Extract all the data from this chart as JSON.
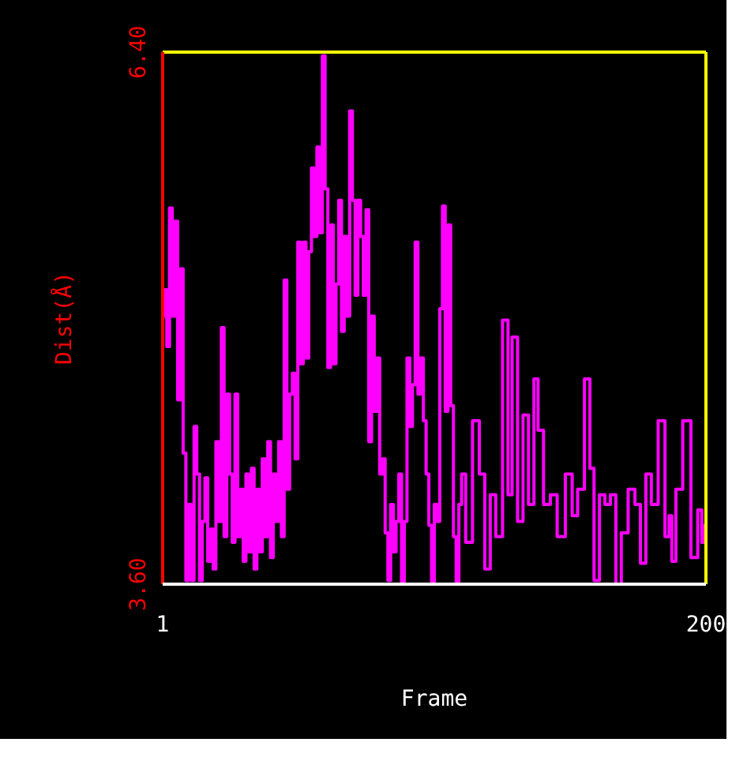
{
  "chart_data": {
    "type": "step",
    "xlabel": "Frame",
    "ylabel": "Dist(Å)",
    "xlim": [
      1,
      200
    ],
    "ylim": [
      3.6,
      6.4
    ],
    "xticks": [
      1,
      200
    ],
    "yticks": [
      {
        "value": 3.6,
        "label": "3.60"
      },
      {
        "value": 6.4,
        "label": "6.40"
      }
    ],
    "series": [
      {
        "color": "#ff00ff",
        "x": [
          1,
          2,
          3,
          4,
          5,
          6,
          7,
          8,
          9,
          10,
          11,
          12,
          13,
          14,
          15,
          16,
          17,
          18,
          19,
          20,
          21,
          22,
          23,
          24,
          25,
          26,
          27,
          28,
          29,
          30,
          31,
          32,
          33,
          34,
          35,
          36,
          37,
          38,
          39,
          40,
          41,
          42,
          43,
          44,
          45,
          46,
          47,
          48,
          49,
          50,
          51,
          52,
          53,
          54,
          55,
          56,
          57,
          58,
          59,
          60,
          61,
          62,
          63,
          64,
          65,
          66,
          67,
          68,
          69,
          70,
          71,
          72,
          73,
          74,
          75,
          76,
          77,
          78,
          79,
          80,
          81,
          82,
          83,
          84,
          85,
          86,
          87,
          88,
          89,
          90,
          91,
          92,
          93,
          94,
          95,
          96,
          97,
          98,
          99,
          100,
          101,
          102,
          103,
          104,
          105,
          106,
          107,
          108,
          109,
          110,
          111,
          113,
          116,
          118,
          120,
          122,
          124,
          127,
          128,
          130,
          132,
          134,
          136,
          138,
          139,
          142,
          144,
          147,
          150,
          152,
          154,
          157,
          158,
          160,
          162,
          164,
          166,
          168,
          170,
          173,
          175,
          177,
          179,
          181,
          184,
          186,
          187,
          188,
          190,
          193,
          196,
          198,
          199,
          200
        ],
        "values": [
          5.01,
          5.15,
          4.85,
          5.58,
          5.01,
          5.51,
          4.57,
          5.26,
          4.29,
          3.62,
          4.02,
          3.62,
          4.43,
          4.18,
          3.62,
          3.93,
          4.16,
          3.72,
          3.89,
          3.68,
          4.35,
          3.93,
          4.95,
          3.85,
          4.6,
          4.18,
          3.82,
          4.6,
          3.85,
          4.1,
          3.72,
          4.18,
          3.77,
          4.21,
          3.68,
          4.1,
          3.77,
          4.26,
          3.85,
          4.35,
          3.74,
          4.18,
          3.93,
          4.35,
          3.85,
          5.2,
          4.1,
          4.6,
          4.71,
          4.26,
          5.4,
          4.76,
          5.4,
          4.79,
          5.35,
          5.79,
          5.43,
          5.9,
          5.45,
          6.38,
          5.68,
          4.74,
          5.49,
          4.76,
          5.18,
          5.62,
          4.93,
          5.43,
          5.01,
          6.09,
          5.62,
          5.12,
          5.62,
          5.43,
          5.12,
          5.57,
          4.35,
          5.01,
          4.51,
          4.79,
          4.18,
          4.26,
          3.87,
          3.62,
          4.02,
          3.77,
          3.93,
          4.18,
          3.6,
          3.93,
          4.79,
          4.43,
          4.65,
          5.4,
          4.6,
          4.79,
          4.46,
          4.18,
          3.91,
          3.6,
          4.02,
          3.93,
          5.05,
          5.59,
          4.51,
          5.49,
          4.54,
          3.85,
          3.6,
          4.02,
          4.18,
          3.82,
          4.46,
          4.18,
          3.68,
          4.07,
          3.85,
          4.99,
          4.07,
          4.9,
          3.93,
          4.49,
          4.02,
          4.68,
          4.41,
          4.02,
          4.07,
          3.85,
          4.18,
          3.96,
          4.1,
          4.68,
          4.21,
          3.62,
          4.07,
          4.02,
          4.07,
          3.6,
          3.87,
          4.1,
          4.02,
          3.71,
          4.18,
          4.02,
          4.46,
          3.85,
          3.96,
          3.72,
          4.1,
          4.46,
          3.74,
          3.99,
          3.82,
          3.91
        ]
      }
    ]
  }
}
